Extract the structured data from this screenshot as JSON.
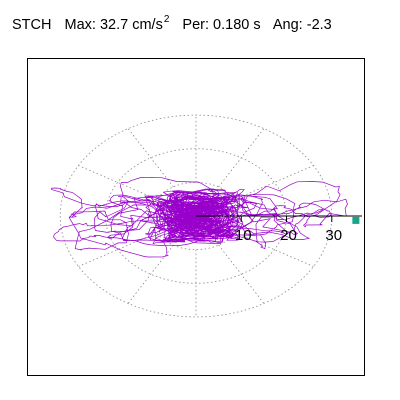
{
  "header": {
    "station": "STCH",
    "max_label": "Max:",
    "max_value": "32.7 cm/s",
    "max_exp": "2",
    "per_label": "Per:",
    "per_value": "0.180 s",
    "ang_label": "Ang:",
    "ang_value": "-2.3"
  },
  "chart_data": {
    "type": "polar-orbit",
    "title": "",
    "radial_ticks": [
      10,
      20,
      30
    ],
    "radial_tick_labels": [
      "10",
      "20",
      "30"
    ],
    "radial_max": 32.7,
    "grid_rings": [
      10,
      20,
      30
    ],
    "spoke_angles_deg": [
      0,
      30,
      60,
      90,
      120,
      150,
      180,
      210,
      240,
      270,
      300,
      330
    ],
    "grid": true,
    "max_marker": {
      "r": 32.7,
      "angle_deg": -2.3
    },
    "colors": {
      "trace": "#9900cc",
      "grid": "#888888",
      "marker": "#1aa58a",
      "axis": "#000000"
    }
  }
}
